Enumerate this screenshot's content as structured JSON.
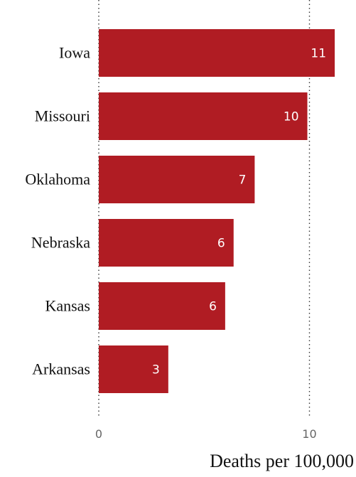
{
  "chart_data": {
    "type": "bar",
    "orientation": "horizontal",
    "categories": [
      "Iowa",
      "Missouri",
      "Oklahoma",
      "Nebraska",
      "Kansas",
      "Arkansas"
    ],
    "values": [
      11.2,
      9.9,
      7.4,
      6.4,
      6.0,
      3.3
    ],
    "data_labels": [
      "11",
      "10",
      "7",
      "6",
      "6",
      "3"
    ],
    "xlabel": "Deaths per 100,000",
    "ylabel": "",
    "xlim": [
      0,
      11.4
    ],
    "x_ticks": [
      0,
      10
    ],
    "x_tick_labels": [
      "0",
      "10"
    ],
    "grid": "vertical dotted at ticks",
    "legend": "none",
    "bar_color": "#b01c23",
    "label_color": "#ffffff"
  }
}
